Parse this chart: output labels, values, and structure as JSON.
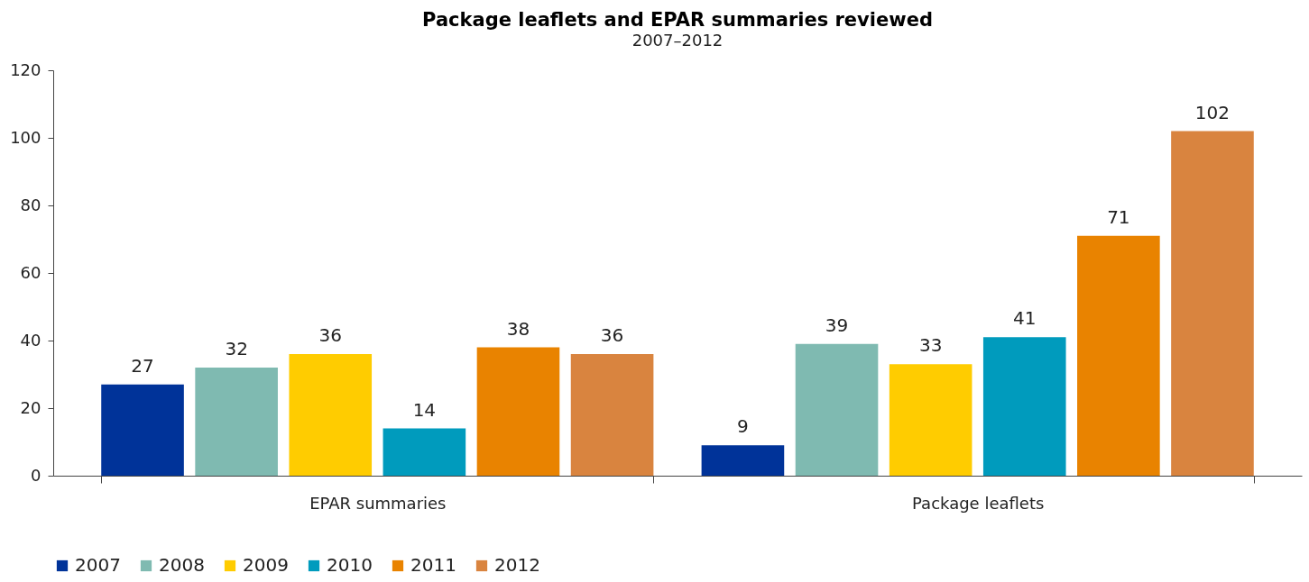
{
  "chart_data": {
    "type": "bar",
    "title": "Package leaflets and EPAR summaries reviewed",
    "subtitle": "2007–2012",
    "categories": [
      "EPAR summaries",
      "Package leaflets"
    ],
    "series": [
      {
        "name": "2007",
        "color": "#003399",
        "values": [
          27,
          9
        ]
      },
      {
        "name": "2008",
        "color": "#7fbab1",
        "values": [
          32,
          39
        ]
      },
      {
        "name": "2009",
        "color": "#ffcc00",
        "values": [
          36,
          33
        ]
      },
      {
        "name": "2010",
        "color": "#009bbd",
        "values": [
          14,
          41
        ]
      },
      {
        "name": "2011",
        "color": "#e98300",
        "values": [
          38,
          71
        ]
      },
      {
        "name": "2012",
        "color": "#d9843f",
        "values": [
          36,
          102
        ]
      }
    ],
    "ylim": [
      0,
      120
    ],
    "yticks": [
      0,
      20,
      40,
      60,
      80,
      100,
      120
    ],
    "grid": false,
    "legend": "bottom",
    "data_labels": true
  }
}
